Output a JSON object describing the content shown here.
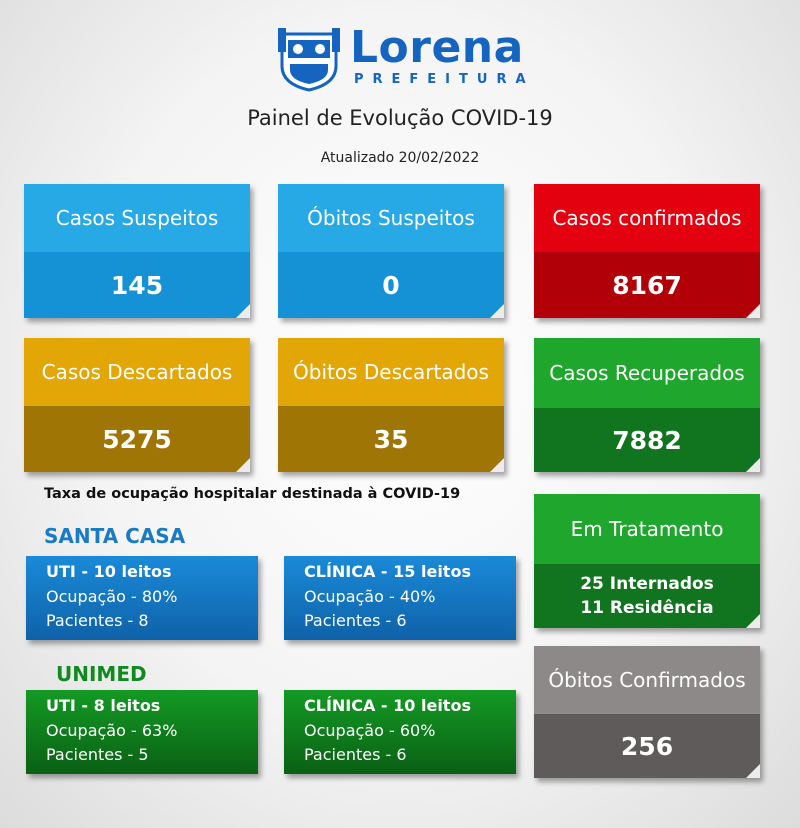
{
  "header": {
    "logo_name": "Lorena",
    "logo_sub": "PREFEITURA",
    "title": "Painel de Evolução COVID-19",
    "updated": "Atualizado 20/02/2022"
  },
  "cards": {
    "casos_suspeitos": {
      "label": "Casos Suspeitos",
      "value": "145"
    },
    "obitos_suspeitos": {
      "label": "Óbitos Suspeitos",
      "value": "0"
    },
    "casos_confirmados": {
      "label": "Casos confirmados",
      "value": "8167"
    },
    "casos_descartados": {
      "label": "Casos Descartados",
      "value": "5275"
    },
    "obitos_descartados": {
      "label": "Óbitos Descartados",
      "value": "35"
    },
    "casos_recuperados": {
      "label": "Casos Recuperados",
      "value": "7882"
    },
    "em_tratamento": {
      "label": "Em Tratamento",
      "line1": "25 Internados",
      "line2": "11 Residência"
    },
    "obitos_confirmados": {
      "label": "Óbitos Confirmados",
      "value": "256"
    }
  },
  "occupancy": {
    "title": "Taxa de ocupação hospitalar destinada à COVID-19",
    "santa_casa": {
      "name": "SANTA CASA",
      "uti": {
        "title": "UTI - 10 leitos",
        "ocupacao": "Ocupação - 80%",
        "pacientes": "Pacientes - 8"
      },
      "clinica": {
        "title": "CLÍNICA - 15 leitos",
        "ocupacao": "Ocupação - 40%",
        "pacientes": "Pacientes - 6"
      }
    },
    "unimed": {
      "name": "UNIMED",
      "uti": {
        "title": "UTI - 8 leitos",
        "ocupacao": "Ocupação - 63%",
        "pacientes": "Pacientes - 5"
      },
      "clinica": {
        "title": "CLÍNICA - 10 leitos",
        "ocupacao": "Ocupação - 60%",
        "pacientes": "Pacientes - 6"
      }
    }
  },
  "colors": {
    "blue": "#27a9e6",
    "red": "#e3000f",
    "gold": "#e2a707",
    "green": "#1fa62c",
    "gray": "#8d8989",
    "brand": "#1565c0"
  }
}
